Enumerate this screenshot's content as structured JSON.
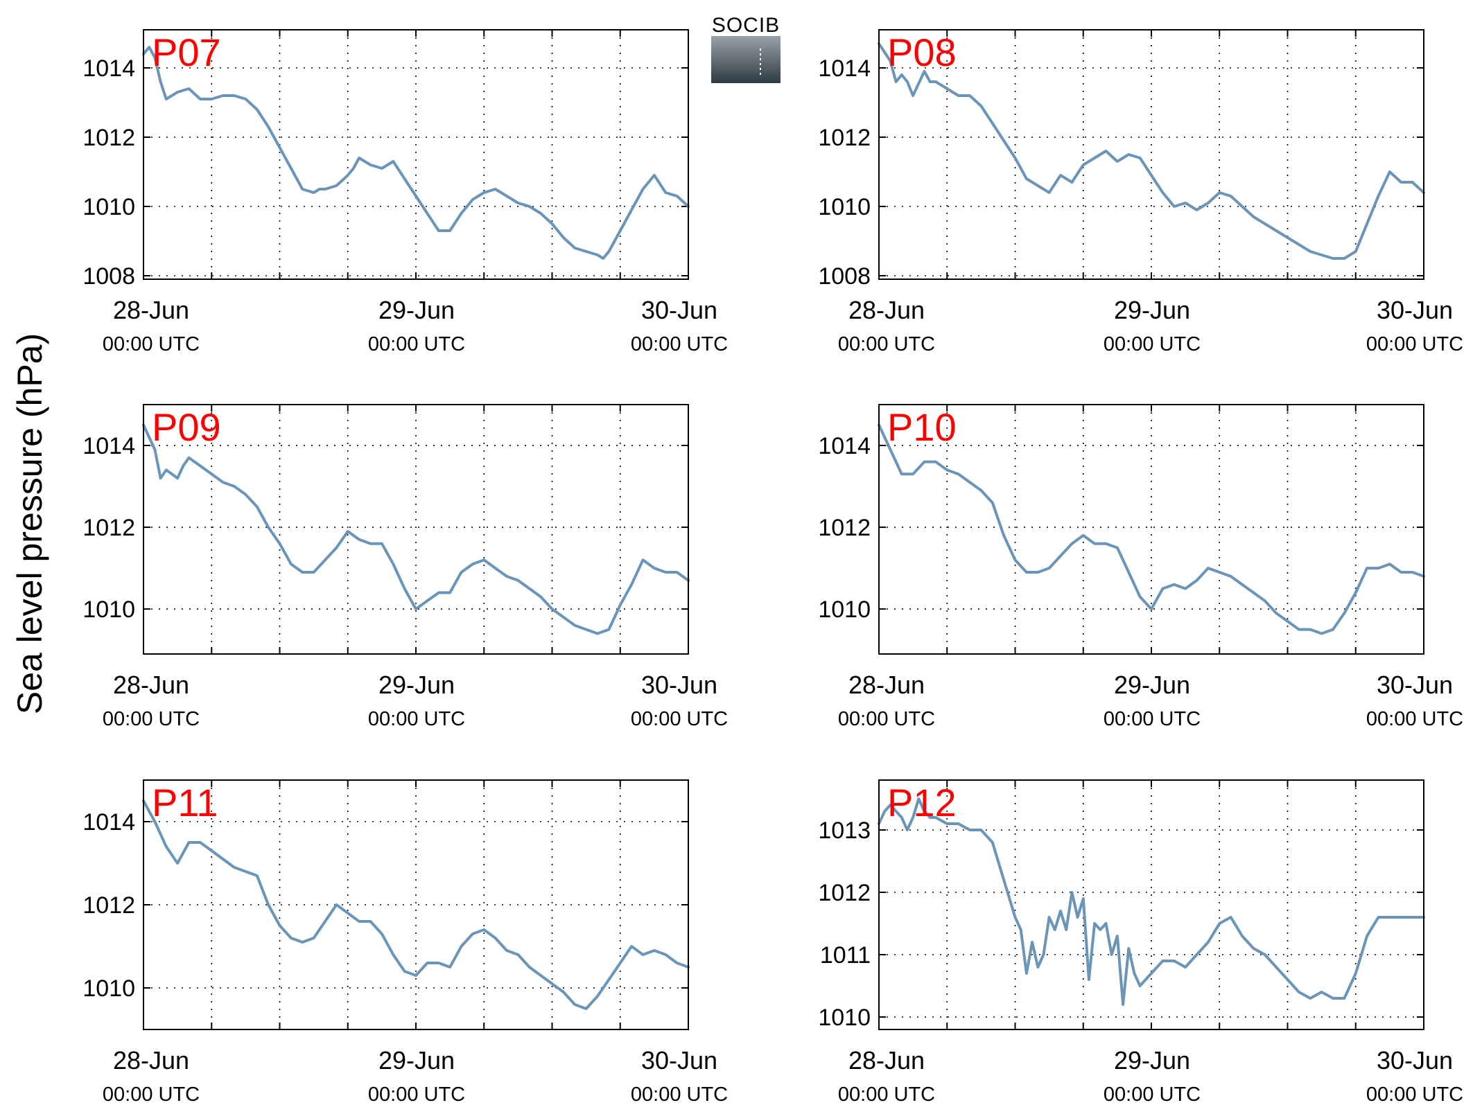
{
  "figure": {
    "ylabel": "Sea level pressure (hPa)",
    "logo_text": "SOCIB",
    "x_tick_dates": [
      "28-Jun",
      "29-Jun",
      "30-Jun"
    ],
    "x_tick_times": [
      "00:00 UTC",
      "00:00 UTC",
      "00:00 UTC"
    ],
    "colors": {
      "line": "#6a95b8",
      "label": "#ff0000",
      "grid": "#000000",
      "logo_text": "#5bbccd",
      "logo_top": "#9aa2a8",
      "logo_bottom": "#2e3b44"
    }
  },
  "chart_data": [
    {
      "type": "line",
      "label": "P07",
      "x_range_hours": [
        0,
        48
      ],
      "ylim": [
        1007.9,
        1015.1
      ],
      "yticks": [
        1008,
        1010,
        1012,
        1014
      ],
      "grid": true,
      "x_hours": [
        0,
        0.5,
        1,
        1.5,
        2,
        3,
        4,
        5,
        6,
        7,
        8,
        9,
        10,
        11,
        12,
        13,
        14,
        15,
        15.5,
        16,
        17,
        18,
        18.5,
        19,
        20,
        21,
        22,
        23,
        24,
        25,
        26,
        27,
        28,
        29,
        30,
        31,
        32,
        33,
        34,
        35,
        36,
        37,
        38,
        39,
        40,
        40.5,
        41,
        42,
        43,
        44,
        45,
        46,
        47,
        48
      ],
      "y_values": [
        1014.4,
        1014.6,
        1014.3,
        1013.6,
        1013.1,
        1013.3,
        1013.4,
        1013.1,
        1013.1,
        1013.2,
        1013.2,
        1013.1,
        1012.8,
        1012.3,
        1011.7,
        1011.1,
        1010.5,
        1010.4,
        1010.5,
        1010.5,
        1010.6,
        1010.9,
        1011.1,
        1011.4,
        1011.2,
        1011.1,
        1011.3,
        1010.8,
        1010.3,
        1009.8,
        1009.3,
        1009.3,
        1009.8,
        1010.2,
        1010.4,
        1010.5,
        1010.3,
        1010.1,
        1010.0,
        1009.8,
        1009.5,
        1009.1,
        1008.8,
        1008.7,
        1008.6,
        1008.5,
        1008.7,
        1009.3,
        1009.9,
        1010.5,
        1010.9,
        1010.4,
        1010.3,
        1010.0
      ]
    },
    {
      "type": "line",
      "label": "P08",
      "x_range_hours": [
        0,
        48
      ],
      "ylim": [
        1007.9,
        1015.1
      ],
      "yticks": [
        1008,
        1010,
        1012,
        1014
      ],
      "grid": true,
      "x_hours": [
        0,
        1,
        1.5,
        2,
        2.5,
        3,
        4,
        4.5,
        5,
        6,
        7,
        8,
        9,
        10,
        11,
        12,
        13,
        14,
        15,
        16,
        17,
        18,
        19,
        20,
        21,
        22,
        23,
        24,
        25,
        26,
        27,
        28,
        29,
        30,
        31,
        32,
        33,
        34,
        35,
        36,
        37,
        38,
        39,
        40,
        41,
        42,
        43,
        44,
        45,
        46,
        47,
        48
      ],
      "y_values": [
        1014.7,
        1014.2,
        1013.6,
        1013.8,
        1013.6,
        1013.2,
        1013.9,
        1013.6,
        1013.6,
        1013.4,
        1013.2,
        1013.2,
        1012.9,
        1012.4,
        1011.9,
        1011.4,
        1010.8,
        1010.6,
        1010.4,
        1010.9,
        1010.7,
        1011.2,
        1011.4,
        1011.6,
        1011.3,
        1011.5,
        1011.4,
        1010.9,
        1010.4,
        1010.0,
        1010.1,
        1009.9,
        1010.1,
        1010.4,
        1010.3,
        1010.0,
        1009.7,
        1009.5,
        1009.3,
        1009.1,
        1008.9,
        1008.7,
        1008.6,
        1008.5,
        1008.5,
        1008.7,
        1009.5,
        1010.3,
        1011.0,
        1010.7,
        1010.7,
        1010.4
      ]
    },
    {
      "type": "line",
      "label": "P09",
      "x_range_hours": [
        0,
        48
      ],
      "ylim": [
        1008.9,
        1015.0
      ],
      "yticks": [
        1010,
        1012,
        1014
      ],
      "grid": true,
      "x_hours": [
        0,
        1,
        1.5,
        2,
        3,
        3.5,
        4,
        5,
        6,
        7,
        8,
        9,
        10,
        11,
        12,
        13,
        14,
        15,
        16,
        17,
        18,
        19,
        20,
        21,
        22,
        23,
        24,
        25,
        26,
        27,
        28,
        29,
        30,
        31,
        32,
        33,
        34,
        35,
        36,
        37,
        38,
        39,
        40,
        41,
        42,
        43,
        44,
        45,
        46,
        47,
        48
      ],
      "y_values": [
        1014.5,
        1013.9,
        1013.2,
        1013.4,
        1013.2,
        1013.5,
        1013.7,
        1013.5,
        1013.3,
        1013.1,
        1013.0,
        1012.8,
        1012.5,
        1012.0,
        1011.6,
        1011.1,
        1010.9,
        1010.9,
        1011.2,
        1011.5,
        1011.9,
        1011.7,
        1011.6,
        1011.6,
        1011.1,
        1010.5,
        1010.0,
        1010.2,
        1010.4,
        1010.4,
        1010.9,
        1011.1,
        1011.2,
        1011.0,
        1010.8,
        1010.7,
        1010.5,
        1010.3,
        1010.0,
        1009.8,
        1009.6,
        1009.5,
        1009.4,
        1009.5,
        1010.1,
        1010.6,
        1011.2,
        1011.0,
        1010.9,
        1010.9,
        1010.7
      ]
    },
    {
      "type": "line",
      "label": "P10",
      "x_range_hours": [
        0,
        48
      ],
      "ylim": [
        1008.9,
        1015.0
      ],
      "yticks": [
        1010,
        1012,
        1014
      ],
      "grid": true,
      "x_hours": [
        0,
        1,
        2,
        3,
        4,
        5,
        6,
        7,
        8,
        9,
        10,
        11,
        12,
        13,
        14,
        15,
        16,
        17,
        18,
        19,
        20,
        21,
        22,
        23,
        24,
        25,
        26,
        27,
        28,
        29,
        30,
        31,
        32,
        33,
        34,
        35,
        36,
        37,
        38,
        39,
        40,
        41,
        42,
        43,
        44,
        45,
        46,
        47,
        48
      ],
      "y_values": [
        1014.5,
        1013.9,
        1013.3,
        1013.3,
        1013.6,
        1013.6,
        1013.4,
        1013.3,
        1013.1,
        1012.9,
        1012.6,
        1011.8,
        1011.2,
        1010.9,
        1010.9,
        1011.0,
        1011.3,
        1011.6,
        1011.8,
        1011.6,
        1011.6,
        1011.5,
        1010.9,
        1010.3,
        1010.0,
        1010.5,
        1010.6,
        1010.5,
        1010.7,
        1011.0,
        1010.9,
        1010.8,
        1010.6,
        1010.4,
        1010.2,
        1009.9,
        1009.7,
        1009.5,
        1009.5,
        1009.4,
        1009.5,
        1009.9,
        1010.4,
        1011.0,
        1011.0,
        1011.1,
        1010.9,
        1010.9,
        1010.8
      ]
    },
    {
      "type": "line",
      "label": "P11",
      "x_range_hours": [
        0,
        48
      ],
      "ylim": [
        1009.0,
        1015.0
      ],
      "yticks": [
        1010,
        1012,
        1014
      ],
      "grid": true,
      "x_hours": [
        0,
        1,
        2,
        3,
        4,
        5,
        6,
        7,
        8,
        9,
        10,
        11,
        12,
        13,
        14,
        15,
        16,
        17,
        18,
        19,
        20,
        21,
        22,
        23,
        24,
        25,
        26,
        27,
        28,
        29,
        30,
        31,
        32,
        33,
        34,
        35,
        36,
        37,
        38,
        39,
        40,
        41,
        42,
        43,
        44,
        45,
        46,
        47,
        48
      ],
      "y_values": [
        1014.5,
        1014.0,
        1013.4,
        1013.0,
        1013.5,
        1013.5,
        1013.3,
        1013.1,
        1012.9,
        1012.8,
        1012.7,
        1012.0,
        1011.5,
        1011.2,
        1011.1,
        1011.2,
        1011.6,
        1012.0,
        1011.8,
        1011.6,
        1011.6,
        1011.3,
        1010.8,
        1010.4,
        1010.3,
        1010.6,
        1010.6,
        1010.5,
        1011.0,
        1011.3,
        1011.4,
        1011.2,
        1010.9,
        1010.8,
        1010.5,
        1010.3,
        1010.1,
        1009.9,
        1009.6,
        1009.5,
        1009.8,
        1010.2,
        1010.6,
        1011.0,
        1010.8,
        1010.9,
        1010.8,
        1010.6,
        1010.5
      ]
    },
    {
      "type": "line",
      "label": "P12",
      "x_range_hours": [
        0,
        48
      ],
      "ylim": [
        1009.8,
        1013.8
      ],
      "yticks": [
        1010,
        1011,
        1012,
        1013
      ],
      "grid": true,
      "x_hours": [
        0,
        0.5,
        1,
        1.5,
        2,
        2.5,
        3,
        3.5,
        4,
        4.5,
        5,
        6,
        7,
        8,
        9,
        10,
        11,
        12,
        12.5,
        13,
        13.5,
        14,
        14.5,
        15,
        15.5,
        16,
        16.5,
        17,
        17.5,
        18,
        18.5,
        19,
        19.5,
        20,
        20.5,
        21,
        21.5,
        22,
        22.5,
        23,
        23.5,
        24,
        25,
        26,
        27,
        28,
        29,
        30,
        31,
        32,
        33,
        34,
        35,
        36,
        37,
        38,
        39,
        40,
        41,
        42,
        43,
        44,
        45,
        46,
        47,
        48
      ],
      "y_values": [
        1013.1,
        1013.3,
        1013.4,
        1013.3,
        1013.2,
        1013.0,
        1013.2,
        1013.5,
        1013.3,
        1013.2,
        1013.2,
        1013.1,
        1013.1,
        1013.0,
        1013.0,
        1012.8,
        1012.2,
        1011.6,
        1011.4,
        1010.7,
        1011.2,
        1010.8,
        1011.0,
        1011.6,
        1011.4,
        1011.7,
        1011.4,
        1012.0,
        1011.6,
        1011.9,
        1010.6,
        1011.5,
        1011.4,
        1011.5,
        1011.0,
        1011.3,
        1010.2,
        1011.1,
        1010.7,
        1010.5,
        1010.6,
        1010.7,
        1010.9,
        1010.9,
        1010.8,
        1011.0,
        1011.2,
        1011.5,
        1011.6,
        1011.3,
        1011.1,
        1011.0,
        1010.8,
        1010.6,
        1010.4,
        1010.3,
        1010.4,
        1010.3,
        1010.3,
        1010.7,
        1011.3,
        1011.6,
        1011.6,
        1011.6,
        1011.6,
        1011.6
      ]
    }
  ]
}
